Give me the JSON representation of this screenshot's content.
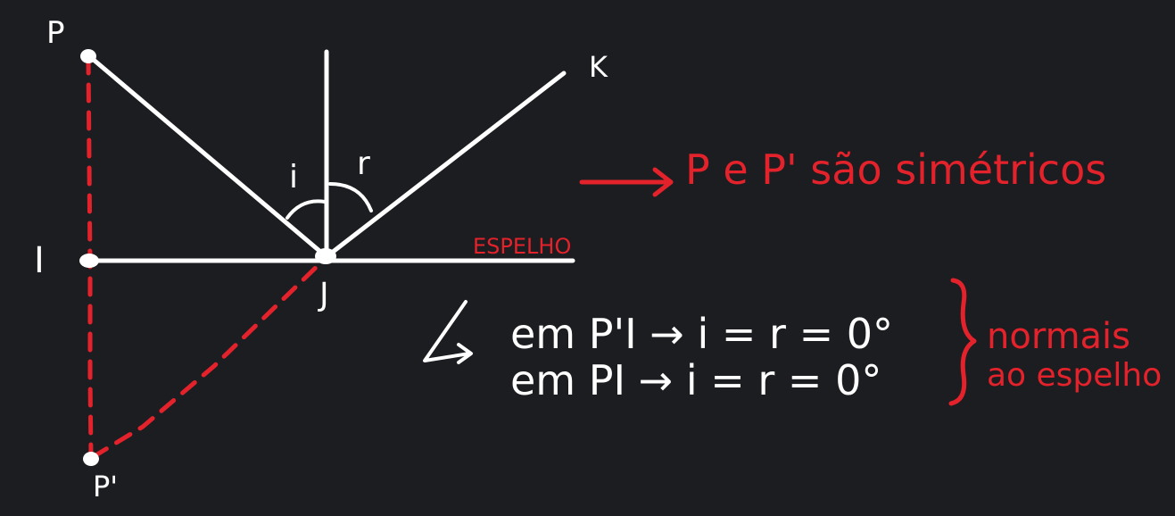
{
  "canvas": {
    "background": "#1b1d20"
  },
  "colors": {
    "ink": "#ffffff",
    "accent": "#e3222b"
  },
  "points": {
    "P": "P",
    "P_prime": "P'",
    "I": "I",
    "J": "J",
    "K": "K"
  },
  "angles": {
    "incidence": "i",
    "reflection": "r"
  },
  "mirror_label": "ESPELHO",
  "symmetry_note": {
    "text": "P e P' são simétricos",
    "arrow_icon": "arrow-right-icon"
  },
  "equations": {
    "line1": "em P'I → i = r = 0°",
    "line2": "em PI → i = r = 0°",
    "pointer_icon": "curved-arrow-icon"
  },
  "bracket_note": {
    "line1": "normais",
    "line2": "ao espelho",
    "bracket_icon": "curly-brace-icon"
  }
}
